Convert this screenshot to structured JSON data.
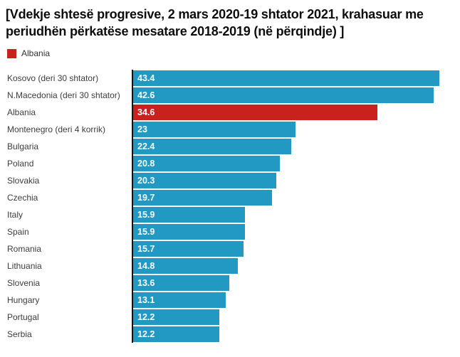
{
  "title": "[Vdekje shtesë progresive, 2 mars 2020-19 shtator 2021, krahasuar me periudhën përkatëse mesatare 2018-2019 (në përqindje) ]",
  "legend": {
    "label": "Albania",
    "color": "#c9211e"
  },
  "colors": {
    "bar_default": "#2199c2",
    "bar_highlight": "#c9211e",
    "axis": "#141414",
    "title_text": "#0d0d0d",
    "category_text": "#3d3d3d",
    "value_text": "#ffffff",
    "background": "#ffffff"
  },
  "chart_data": {
    "type": "bar",
    "orientation": "horizontal",
    "title": "[Vdekje shtesë progresive, 2 mars 2020-19 shtator 2021, krahasuar me periudhën përkatëse mesatare 2018-2019 (në përqindje) ]",
    "categories": [
      "Kosovo (deri 30 shtator)",
      "N.Macedonia (deri 30 shtator)",
      "Albania",
      "Montenegro (deri 4 korrik)",
      "Bulgaria",
      "Poland",
      "Slovakia",
      "Czechia",
      "Italy",
      "Spain",
      "Romania",
      "Lithuania",
      "Slovenia",
      "Hungary",
      "Portugal",
      "Serbia"
    ],
    "values": [
      43.4,
      42.6,
      34.6,
      23,
      22.4,
      20.8,
      20.3,
      19.7,
      15.9,
      15.9,
      15.7,
      14.8,
      13.6,
      13.1,
      12.2,
      12.2
    ],
    "value_labels": [
      "43.4",
      "42.6",
      "34.6",
      "23",
      "22.4",
      "20.8",
      "20.3",
      "19.7",
      "15.9",
      "15.9",
      "15.7",
      "14.8",
      "13.6",
      "13.1",
      "12.2",
      "12.2"
    ],
    "highlight_category": "Albania",
    "xlabel": "",
    "ylabel": "",
    "xlim": [
      0,
      46
    ],
    "grid": false,
    "legend_position": "top-left",
    "value_labels_inside_bars": true
  }
}
